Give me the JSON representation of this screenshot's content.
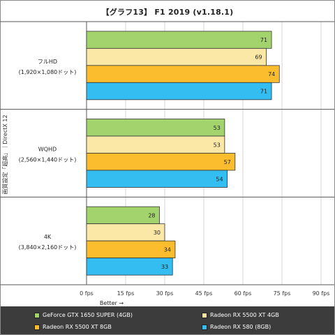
{
  "chart_data": {
    "type": "bar",
    "title": "【グラフ13】 F1 2019 (v1.18.1)",
    "ylabel": "画質設定「超高」｜DirectX 12",
    "xlabel": "Better →",
    "xlim": [
      0,
      90
    ],
    "xticks": [
      "0 fps",
      "15 fps",
      "30 fps",
      "45 fps",
      "60 fps",
      "75 fps",
      "90 fps"
    ],
    "orientation": "horizontal",
    "categories": [
      {
        "name": "フルHD",
        "sub": "(1,920×1,080ドット)"
      },
      {
        "name": "WQHD",
        "sub": "(2,560×1,440ドット)"
      },
      {
        "name": "4K",
        "sub": "(3,840×2,160ドット)"
      }
    ],
    "series": [
      {
        "name": "GeForce GTX 1650 SUPER (4GB)",
        "color": "#a3d36d",
        "values": [
          71,
          53,
          28
        ]
      },
      {
        "name": "Radeon RX 5500 XT 4GB",
        "color": "#fbe7a6",
        "values": [
          69,
          53,
          30
        ]
      },
      {
        "name": "Radeon RX 5500 XT 8GB",
        "color": "#fbbd2d",
        "values": [
          74,
          57,
          34
        ]
      },
      {
        "name": "Radeon RX 580 (8GB)",
        "color": "#33bdf0",
        "values": [
          71,
          54,
          33
        ]
      }
    ],
    "grid": true
  }
}
